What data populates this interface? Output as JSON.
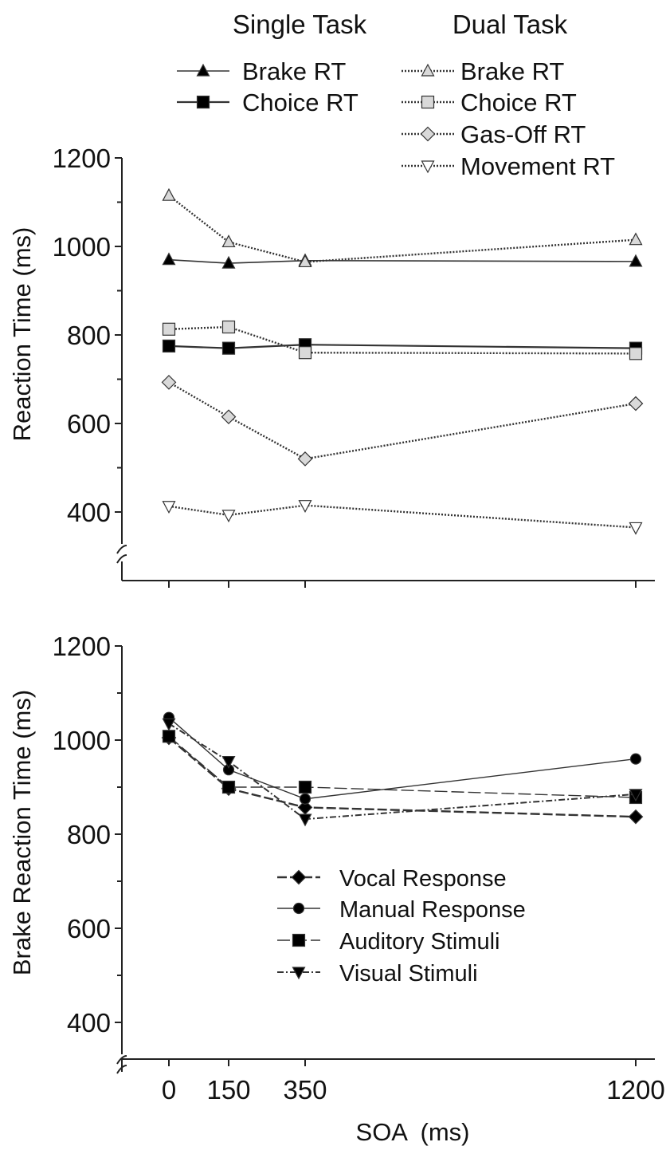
{
  "chart_data": [
    {
      "type": "line",
      "ylabel": "Reaction Time (ms)",
      "ylim": [
        400,
        1200
      ],
      "y_ticks": [
        "400",
        "600",
        "800",
        "1000",
        "1200"
      ],
      "x": [
        0,
        150,
        350,
        1200
      ],
      "grid": false,
      "legend_headers": {
        "single": "Single Task",
        "dual": "Dual Task"
      },
      "legend_placement": "top",
      "series": [
        {
          "name": "Brake RT",
          "group": "Single Task",
          "marker": "triangle-up",
          "fill": "#000000",
          "dash": "solid",
          "width": 1.6,
          "values": [
            970,
            962,
            968,
            966
          ]
        },
        {
          "name": "Choice RT",
          "group": "Single Task",
          "marker": "square",
          "fill": "#000000",
          "dash": "solid",
          "width": 2.2,
          "values": [
            775,
            770,
            778,
            770
          ]
        },
        {
          "name": "Brake RT",
          "group": "Dual Task",
          "marker": "triangle-up",
          "fill": "#d9d9d9",
          "dash": "dotted",
          "width": 2.4,
          "values": [
            1115,
            1010,
            965,
            1015
          ]
        },
        {
          "name": "Choice RT",
          "group": "Dual Task",
          "marker": "square",
          "fill": "#d9d9d9",
          "dash": "dotted",
          "width": 2.4,
          "values": [
            813,
            818,
            760,
            758
          ]
        },
        {
          "name": "Gas-Off RT",
          "group": "Dual Task",
          "marker": "diamond",
          "fill": "#d9d9d9",
          "dash": "dotted",
          "width": 2.4,
          "values": [
            693,
            615,
            520,
            645
          ]
        },
        {
          "name": "Movement RT",
          "group": "Dual Task",
          "marker": "triangle-down",
          "fill": "#ffffff",
          "dash": "dotted",
          "width": 2.4,
          "values": [
            413,
            393,
            415,
            365
          ]
        }
      ]
    },
    {
      "type": "line",
      "ylabel": "Brake Reaction Time (ms)",
      "xlabel": "SOA  (ms)",
      "ylim": [
        400,
        1200
      ],
      "y_ticks": [
        "400",
        "600",
        "800",
        "1000",
        "1200"
      ],
      "x": [
        0,
        150,
        350,
        1200
      ],
      "x_ticks": [
        "0",
        "150",
        "350",
        "1200"
      ],
      "grid": false,
      "legend_placement": "center",
      "series": [
        {
          "name": "Vocal Response",
          "marker": "diamond",
          "fill": "#000000",
          "dash": "dashed",
          "width": 2.4,
          "values": [
            1005,
            897,
            857,
            837
          ]
        },
        {
          "name": "Manual Response",
          "marker": "circle",
          "fill": "#000000",
          "dash": "solid",
          "width": 1.4,
          "values": [
            1048,
            937,
            875,
            960
          ]
        },
        {
          "name": "Auditory Stimuli",
          "marker": "square",
          "fill": "#000000",
          "dash": "longdash",
          "width": 1.4,
          "values": [
            1008,
            900,
            900,
            878
          ]
        },
        {
          "name": "Visual Stimuli",
          "marker": "triangle-down",
          "fill": "#000000",
          "dash": "dotdash",
          "width": 2.0,
          "values": [
            1035,
            955,
            832,
            885
          ]
        }
      ]
    }
  ]
}
